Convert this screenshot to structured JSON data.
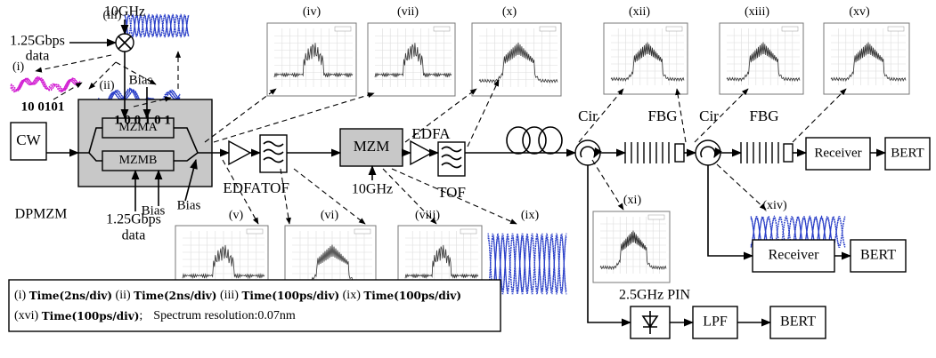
{
  "inputs": {
    "clock_top": "10GHz",
    "data_top_1": "1.25Gbps",
    "data_top_2": "data",
    "bits_i": "10 0101",
    "bits_ii": "1 0 0 1 0 1",
    "bias_top": "Bias",
    "bias_bottom_1": "Bias",
    "bias_bottom_2": "Bias",
    "data_bottom_1": "1.25Gbps",
    "data_bottom_2": "data",
    "clock_mzm": "10GHz"
  },
  "nodes": [
    "CW",
    "DPMZM",
    "MZMA",
    "MZMB",
    "EDFA",
    "TOF",
    "MZM",
    "EDFA",
    "TOF",
    "Cir",
    "FBG",
    "Cir",
    "FBG",
    "Receiver",
    "BERT",
    "Receiver",
    "BERT",
    "2.5GHz PIN",
    "LPF",
    "BERT"
  ],
  "insets": [
    "(i)",
    "(ii)",
    "(iii)",
    "(iv)",
    "(v)",
    "(vi)",
    "(vii)",
    "(viii)",
    "(ix)",
    "(x)",
    "(xi)",
    "(xii)",
    "(xiii)",
    "(xiv)",
    "(xv)"
  ],
  "legend": {
    "items": [
      {
        "label": "(i)",
        "scale": "Time(2ns/div)"
      },
      {
        "label": "(ii)",
        "scale": "Time(2ns/div)"
      },
      {
        "label": "(iii)",
        "scale": "Time(100ps/div)"
      },
      {
        "label": "(ix)",
        "scale": "Time(100ps/div)"
      },
      {
        "label": "(xvi)",
        "scale": "Time(100ps/div)"
      }
    ],
    "separator": ";",
    "note": "Spectrum resolution:0.07nm"
  }
}
